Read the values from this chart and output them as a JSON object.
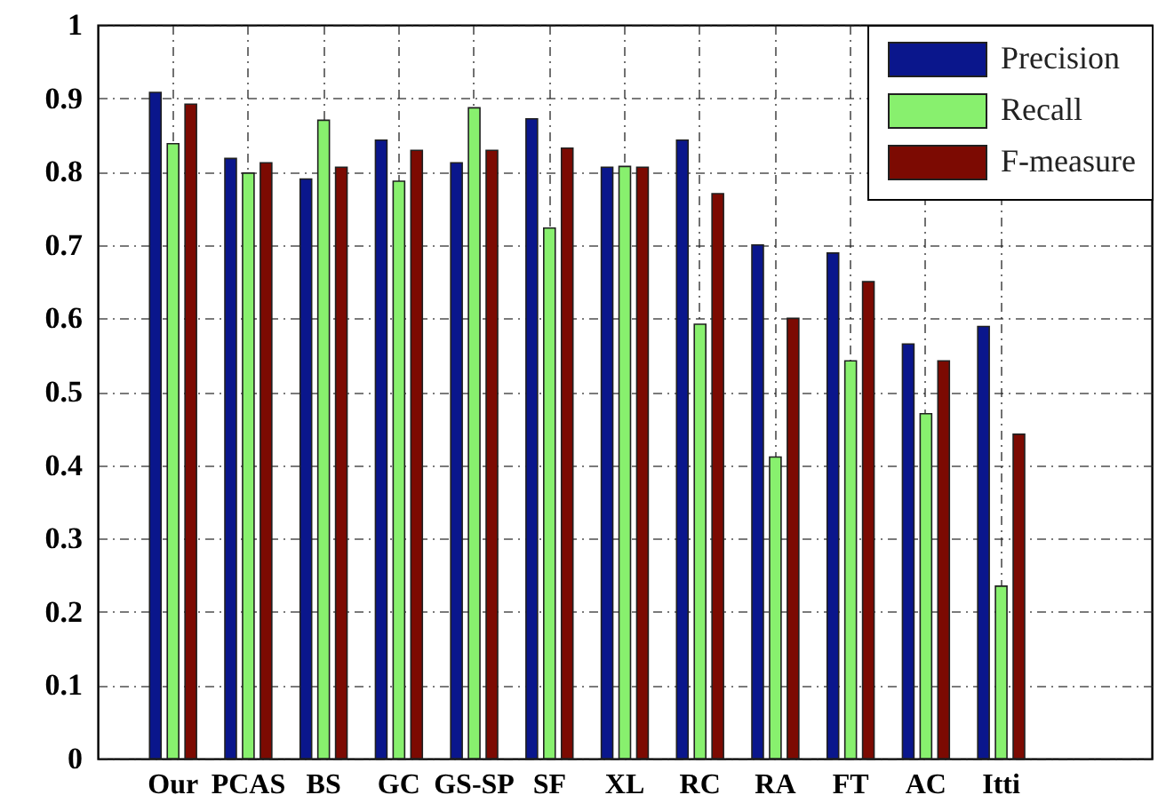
{
  "chart_data": {
    "type": "bar",
    "categories": [
      "Our",
      "PCAS",
      "BS",
      "GC",
      "GS-SP",
      "SF",
      "XL",
      "RC",
      "RA",
      "FT",
      "AC",
      "Itti"
    ],
    "series": [
      {
        "name": "Precision",
        "color": "#0a168c",
        "values": [
          0.908,
          0.818,
          0.79,
          0.843,
          0.812,
          0.872,
          0.806,
          0.843,
          0.7,
          0.689,
          0.565,
          0.589
        ]
      },
      {
        "name": "Recall",
        "color": "#88f06e",
        "values": [
          0.838,
          0.798,
          0.87,
          0.787,
          0.887,
          0.723,
          0.807,
          0.592,
          0.411,
          0.542,
          0.47,
          0.235
        ]
      },
      {
        "name": "F-measure",
        "color": "#7c0a02",
        "values": [
          0.892,
          0.812,
          0.806,
          0.829,
          0.829,
          0.832,
          0.806,
          0.77,
          0.6,
          0.65,
          0.542,
          0.442
        ]
      }
    ],
    "ylim": [
      0,
      1
    ],
    "yticks": [
      0,
      0.1,
      0.2,
      0.3,
      0.4,
      0.5,
      0.6,
      0.7,
      0.8,
      0.9,
      1
    ],
    "grid": true,
    "legend": "top right"
  }
}
